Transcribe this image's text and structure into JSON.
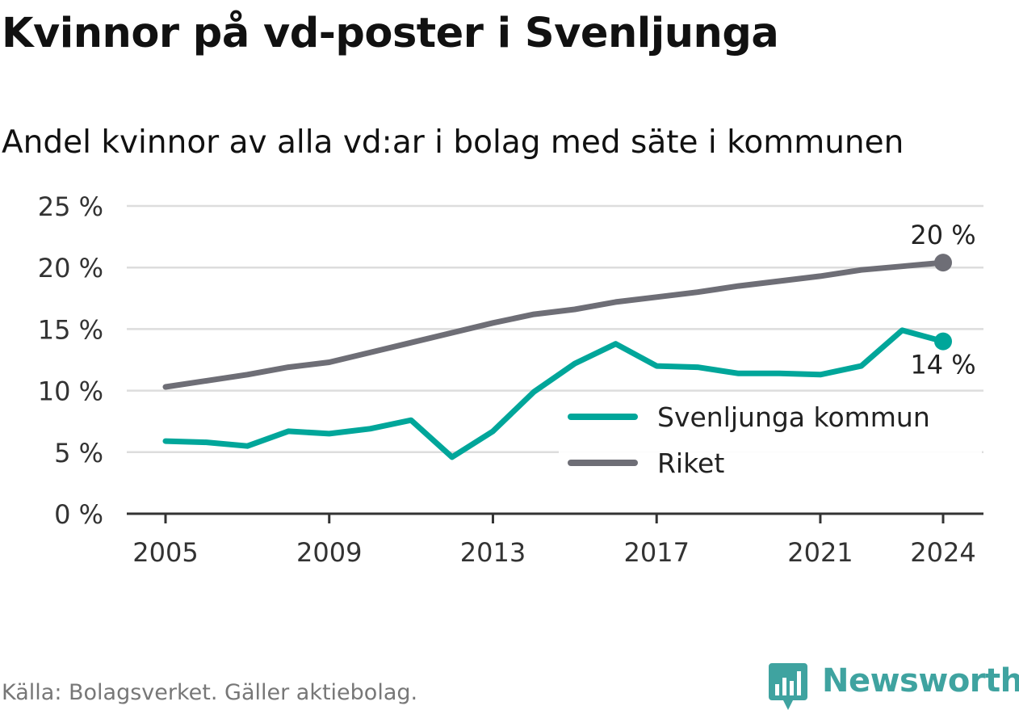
{
  "title": "Kvinnor på vd-poster i Svenljunga",
  "subtitle": "Andel kvinnor av alla vd:ar i bolag med säte i kommunen",
  "source": "Källa: Bolagsverket. Gäller aktiebolag.",
  "brand": {
    "name": "Newsworthy",
    "icon": "bar-chart-pin-icon",
    "color": "#3fa3a0"
  },
  "chart_data": {
    "type": "line",
    "xlim": [
      2005,
      2024
    ],
    "ylim": [
      0,
      25
    ],
    "x_ticks": [
      2005,
      2009,
      2013,
      2017,
      2021,
      2024
    ],
    "x_tick_labels": [
      "2005",
      "2009",
      "2013",
      "2017",
      "2021",
      "2024"
    ],
    "y_ticks": [
      0,
      5,
      10,
      15,
      20,
      25
    ],
    "y_tick_labels": [
      "0 %",
      "5 %",
      "10 %",
      "15 %",
      "20 %",
      "25 %"
    ],
    "grid": true,
    "legend": "right",
    "x": [
      2005,
      2006,
      2007,
      2008,
      2009,
      2010,
      2011,
      2012,
      2013,
      2014,
      2015,
      2016,
      2017,
      2018,
      2019,
      2020,
      2021,
      2022,
      2023,
      2024
    ],
    "series": [
      {
        "name": "Svenljunga kommun",
        "color": "#00a69a",
        "values": [
          5.9,
          5.8,
          5.5,
          6.7,
          6.5,
          6.9,
          7.6,
          4.6,
          6.7,
          9.9,
          12.2,
          13.8,
          12.0,
          11.9,
          11.4,
          11.4,
          11.3,
          12.0,
          14.9,
          14.0
        ],
        "end_label": "14 %"
      },
      {
        "name": "Riket",
        "color": "#6e6e76",
        "values": [
          10.3,
          10.8,
          11.3,
          11.9,
          12.3,
          13.1,
          13.9,
          14.7,
          15.5,
          16.2,
          16.6,
          17.2,
          17.6,
          18.0,
          18.5,
          18.9,
          19.3,
          19.8,
          20.1,
          20.4
        ],
        "end_label": "20 %"
      }
    ]
  }
}
